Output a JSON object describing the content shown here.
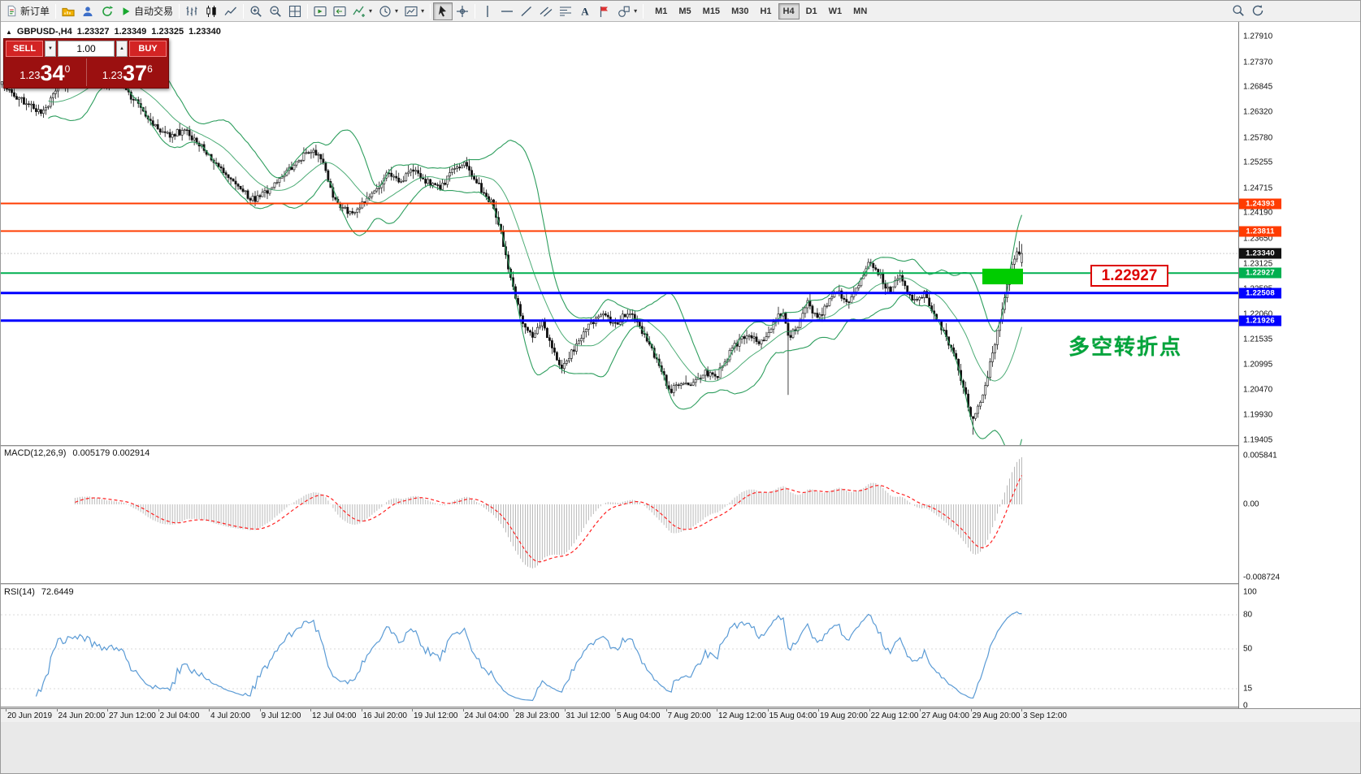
{
  "colors": {
    "toolbar_bg": "#f0f0f0",
    "chart_bg": "#ffffff",
    "candle": "#111111",
    "bollinger": "#2e9e5e",
    "line_red": "#ff3c00",
    "line_green": "#00b050",
    "line_blue": "#0000ff",
    "current_price_bg": "#111111",
    "macd_hist": "#b9b9b9",
    "macd_signal": "#ff2020",
    "rsi_line": "#5b9bd5",
    "highlight_rect": "#00cc00",
    "note_green": "#00a43b"
  },
  "toolbar": {
    "new_order_label": "新订单",
    "autotrade_label": "自动交易",
    "timeframes": [
      "M1",
      "M5",
      "M15",
      "M30",
      "H1",
      "H4",
      "D1",
      "W1",
      "MN"
    ],
    "active_timeframe": "H4"
  },
  "quote_header": {
    "symbol": "GBPUSD-,H4",
    "open": "1.23327",
    "high": "1.23349",
    "low": "1.23325",
    "close": "1.23340"
  },
  "trade_panel": {
    "sell_label": "SELL",
    "buy_label": "BUY",
    "volume": "1.00",
    "sell_price": {
      "base": "1.23",
      "big": "34",
      "pip": "0"
    },
    "buy_price": {
      "base": "1.23",
      "big": "37",
      "pip": "6"
    }
  },
  "price_axis": {
    "min": 1.19405,
    "max": 1.2791,
    "labels": [
      "1.27910",
      "1.27370",
      "1.26845",
      "1.26320",
      "1.25780",
      "1.25255",
      "1.24715",
      "1.24190",
      "1.23650",
      "1.23125",
      "1.22585",
      "1.22060",
      "1.21535",
      "1.20995",
      "1.20470",
      "1.19930",
      "1.19405"
    ]
  },
  "hlines": [
    {
      "price": 1.24393,
      "label": "1.24393",
      "color": "#ff3c00",
      "width": 2
    },
    {
      "price": 1.23811,
      "label": "1.23811",
      "color": "#ff3c00",
      "width": 2
    },
    {
      "price": 1.22927,
      "label": "1.22927",
      "color": "#00b050",
      "width": 2
    },
    {
      "price": 1.22508,
      "label": "1.22508",
      "color": "#0000ff",
      "width": 3
    },
    {
      "price": 1.21926,
      "label": "1.21926",
      "color": "#0000ff",
      "width": 3
    }
  ],
  "current_price": {
    "value": 1.2334,
    "label": "1.23340"
  },
  "annotations": {
    "price_callout": "1.22927",
    "note_text": "多空转折点"
  },
  "macd_panel": {
    "title": "MACD(12,26,9)",
    "values": "0.005179 0.002914",
    "scale_labels": [
      "0.005841",
      "0.00",
      "-0.008724"
    ]
  },
  "rsi_panel": {
    "title": "RSI(14)",
    "value": "72.6449",
    "scale_labels": [
      "100",
      "80",
      "50",
      "15",
      "0"
    ]
  },
  "time_axis": {
    "labels": [
      "20 Jun 2019",
      "24 Jun 20:00",
      "27 Jun 12:00",
      "2 Jul 04:00",
      "4 Jul 20:00",
      "9 Jul 12:00",
      "12 Jul 04:00",
      "16 Jul 20:00",
      "19 Jul 12:00",
      "24 Jul 04:00",
      "28 Jul 23:00",
      "31 Jul 12:00",
      "5 Aug 04:00",
      "7 Aug 20:00",
      "12 Aug 12:00",
      "15 Aug 04:00",
      "19 Aug 20:00",
      "22 Aug 12:00",
      "27 Aug 04:00",
      "29 Aug 20:00",
      "3 Sep 12:00"
    ]
  },
  "chart_data": {
    "type": "candlestick",
    "symbol": "GBPUSD",
    "timeframe": "H4",
    "title": "GBPUSD-,H4",
    "visible_range": {
      "price_min": 1.19405,
      "price_max": 1.2791,
      "time_start": "20 Jun 2019",
      "time_end": "3 Sep 12:00"
    },
    "candle_count": 420,
    "last_close": 1.2334,
    "key_levels": [
      1.24393,
      1.23811,
      1.22927,
      1.22508,
      1.21926
    ],
    "highlight_box": {
      "x0_t": 0.96,
      "x1_t": 1.0,
      "price_top": 1.2302,
      "price_bottom": 1.2269
    },
    "special_wicks": [
      {
        "t": 0.772,
        "low": 1.2036
      },
      {
        "t": 0.952,
        "low": 1.1952
      }
    ],
    "indicators": [
      {
        "name": "Bollinger Bands",
        "period": 20,
        "deviation": 2
      },
      {
        "name": "MACD",
        "fast": 12,
        "slow": 26,
        "signal": 9,
        "current": [
          0.005179,
          0.002914
        ]
      },
      {
        "name": "RSI",
        "period": 14,
        "current": 72.6449
      }
    ],
    "price_keypoints": [
      [
        0.0,
        1.269
      ],
      [
        0.016,
        1.266
      ],
      [
        0.04,
        1.263
      ],
      [
        0.056,
        1.269
      ],
      [
        0.079,
        1.27
      ],
      [
        0.1,
        1.2693
      ],
      [
        0.12,
        1.2685
      ],
      [
        0.135,
        1.264
      ],
      [
        0.15,
        1.26
      ],
      [
        0.165,
        1.2585
      ],
      [
        0.18,
        1.2592
      ],
      [
        0.2,
        1.255
      ],
      [
        0.215,
        1.251
      ],
      [
        0.23,
        1.248
      ],
      [
        0.245,
        1.2447
      ],
      [
        0.26,
        1.2462
      ],
      [
        0.275,
        1.2492
      ],
      [
        0.29,
        1.2532
      ],
      [
        0.305,
        1.2552
      ],
      [
        0.315,
        1.2528
      ],
      [
        0.325,
        1.2452
      ],
      [
        0.34,
        1.2418
      ],
      [
        0.355,
        1.2442
      ],
      [
        0.37,
        1.2472
      ],
      [
        0.378,
        1.2512
      ],
      [
        0.39,
        1.2482
      ],
      [
        0.4,
        1.2512
      ],
      [
        0.415,
        1.2487
      ],
      [
        0.43,
        1.247
      ],
      [
        0.445,
        1.2516
      ],
      [
        0.455,
        1.2522
      ],
      [
        0.47,
        1.2467
      ],
      [
        0.48,
        1.244
      ],
      [
        0.49,
        1.237
      ],
      [
        0.5,
        1.2268
      ],
      [
        0.51,
        1.219
      ],
      [
        0.52,
        1.216
      ],
      [
        0.53,
        1.2186
      ],
      [
        0.54,
        1.213
      ],
      [
        0.55,
        1.2092
      ],
      [
        0.56,
        1.2132
      ],
      [
        0.575,
        1.218
      ],
      [
        0.59,
        1.2212
      ],
      [
        0.6,
        1.2182
      ],
      [
        0.615,
        1.2212
      ],
      [
        0.63,
        1.2162
      ],
      [
        0.645,
        1.2092
      ],
      [
        0.655,
        1.2042
      ],
      [
        0.665,
        1.2066
      ],
      [
        0.675,
        1.2052
      ],
      [
        0.69,
        1.2082
      ],
      [
        0.7,
        1.2072
      ],
      [
        0.715,
        1.2132
      ],
      [
        0.73,
        1.2162
      ],
      [
        0.745,
        1.2146
      ],
      [
        0.755,
        1.218
      ],
      [
        0.765,
        1.2212
      ],
      [
        0.772,
        1.2155
      ],
      [
        0.78,
        1.2182
      ],
      [
        0.79,
        1.2232
      ],
      [
        0.8,
        1.2192
      ],
      [
        0.81,
        1.2232
      ],
      [
        0.82,
        1.2252
      ],
      [
        0.83,
        1.2222
      ],
      [
        0.84,
        1.2272
      ],
      [
        0.85,
        1.2312
      ],
      [
        0.86,
        1.2292
      ],
      [
        0.87,
        1.2252
      ],
      [
        0.88,
        1.2292
      ],
      [
        0.885,
        1.2262
      ],
      [
        0.895,
        1.2232
      ],
      [
        0.905,
        1.2252
      ],
      [
        0.915,
        1.2202
      ],
      [
        0.925,
        1.2162
      ],
      [
        0.935,
        1.2112
      ],
      [
        0.945,
        1.2032
      ],
      [
        0.952,
        1.1982
      ],
      [
        0.958,
        1.2012
      ],
      [
        0.965,
        1.2062
      ],
      [
        0.972,
        1.2132
      ],
      [
        0.98,
        1.2202
      ],
      [
        0.988,
        1.2292
      ],
      [
        0.995,
        1.2336
      ],
      [
        1.0,
        1.2334
      ]
    ]
  }
}
